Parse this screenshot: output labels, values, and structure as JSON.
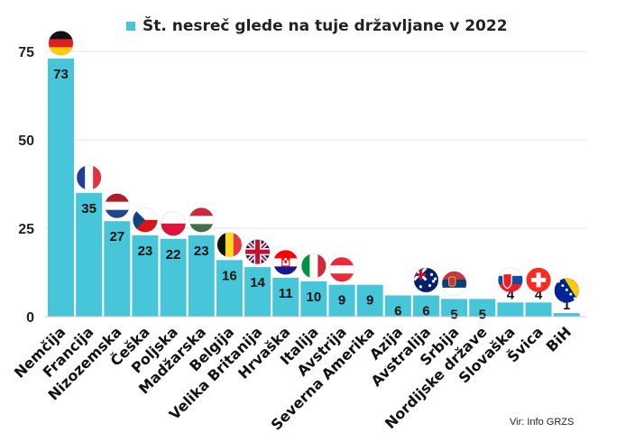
{
  "chart_data": {
    "type": "bar",
    "title": "Št. nesreč glede na tuje državljane v 2022",
    "categories": [
      "Nemčija",
      "Francija",
      "Nizozemska",
      "Češka",
      "Poljska",
      "Madžarska",
      "Belgija",
      "Velika Britanija",
      "Hrvaška",
      "Italija",
      "Avstrija",
      "Severna Amerika",
      "Azija",
      "Avstralija",
      "Srbija",
      "Nordijske države",
      "Slovaška",
      "Švica",
      "BiH"
    ],
    "series": [
      {
        "name": "Št. nesreč glede na tuje državljane v 2022",
        "values": [
          73,
          35,
          27,
          23,
          22,
          23,
          16,
          14,
          11,
          10,
          9,
          9,
          6,
          6,
          5,
          5,
          4,
          4,
          1
        ]
      }
    ],
    "ylim": [
      0,
      75
    ],
    "yticks": [
      0,
      25,
      50,
      75
    ],
    "grid": true,
    "legend": "top-center",
    "flags": [
      "germany-flag-icon",
      "france-flag-icon",
      "netherlands-flag-icon",
      "czechia-flag-icon",
      "poland-flag-icon",
      "hungary-flag-icon",
      "belgium-flag-icon",
      "uk-flag-icon",
      "croatia-flag-icon",
      "italy-flag-icon",
      "austria-flag-icon",
      "",
      "",
      "australia-flag-icon",
      "serbia-flag-icon",
      "",
      "slovakia-flag-icon",
      "switzerland-flag-icon",
      "bih-flag-icon"
    ],
    "bar_color": "#47c6da"
  },
  "source": "Vir: Info GRZS"
}
